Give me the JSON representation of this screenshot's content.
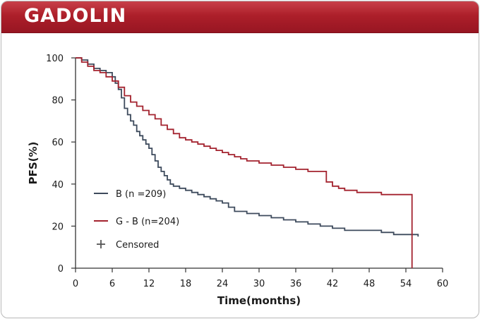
{
  "header": {
    "title": "GADOLIN"
  },
  "colors": {
    "banner": "#ad1f2a",
    "series_b": "#3d4a5c",
    "series_gb": "#a3222e",
    "censored": "#555555"
  },
  "chart_data": {
    "type": "line",
    "step": true,
    "title": "",
    "xlabel": "Time(months)",
    "ylabel": "PFS(%)",
    "xlim": [
      0,
      60
    ],
    "ylim": [
      0,
      100
    ],
    "xticks": [
      0,
      6,
      12,
      18,
      24,
      30,
      36,
      42,
      48,
      54,
      60
    ],
    "yticks": [
      0,
      20,
      40,
      60,
      80,
      100
    ],
    "grid": false,
    "legend_position": "bottom-left",
    "series": [
      {
        "name": "B (n =209)",
        "color": "#3d4a5c",
        "x": [
          0,
          1,
          2,
          3,
          4,
          5,
          6,
          6.5,
          7,
          7.5,
          8,
          8.5,
          9,
          9.5,
          10,
          10.5,
          11,
          11.5,
          12,
          12.5,
          13,
          13.5,
          14,
          14.5,
          15,
          15.5,
          16,
          17,
          18,
          19,
          20,
          21,
          22,
          23,
          24,
          25,
          26,
          28,
          30,
          32,
          34,
          36,
          38,
          40,
          42,
          44,
          46,
          48,
          50,
          52,
          56
        ],
        "y": [
          100,
          99,
          97,
          95,
          94,
          93,
          91,
          88,
          85,
          81,
          76,
          73,
          70,
          68,
          65,
          63,
          61,
          59,
          57,
          54,
          51,
          48,
          46,
          44,
          42,
          40,
          39,
          38,
          37,
          36,
          35,
          34,
          33,
          32,
          31,
          29,
          27,
          26,
          25,
          24,
          23,
          22,
          21,
          20,
          19,
          18,
          18,
          18,
          17,
          16,
          15
        ]
      },
      {
        "name": "G - B (n=204)",
        "color": "#a3222e",
        "x": [
          0,
          1,
          2,
          3,
          4,
          5,
          6,
          7,
          8,
          9,
          10,
          11,
          12,
          13,
          14,
          15,
          16,
          17,
          18,
          19,
          20,
          21,
          22,
          23,
          24,
          25,
          26,
          27,
          28,
          30,
          32,
          34,
          36,
          38,
          40,
          41,
          42,
          43,
          44,
          46,
          48,
          50,
          52,
          54,
          55
        ],
        "y": [
          100,
          98,
          96,
          94,
          93,
          91,
          89,
          86,
          82,
          79,
          77,
          75,
          73,
          71,
          68,
          66,
          64,
          62,
          61,
          60,
          59,
          58,
          57,
          56,
          55,
          54,
          53,
          52,
          51,
          50,
          49,
          48,
          47,
          46,
          46,
          41,
          39,
          38,
          37,
          36,
          36,
          35,
          35,
          35,
          0
        ]
      }
    ],
    "legend": [
      {
        "label": "B (n =209)",
        "symbol": "line",
        "color": "#3d4a5c"
      },
      {
        "label": "G - B (n=204)",
        "symbol": "line",
        "color": "#a3222e"
      },
      {
        "label": "Censored",
        "symbol": "plus",
        "color": "#555555"
      }
    ]
  }
}
